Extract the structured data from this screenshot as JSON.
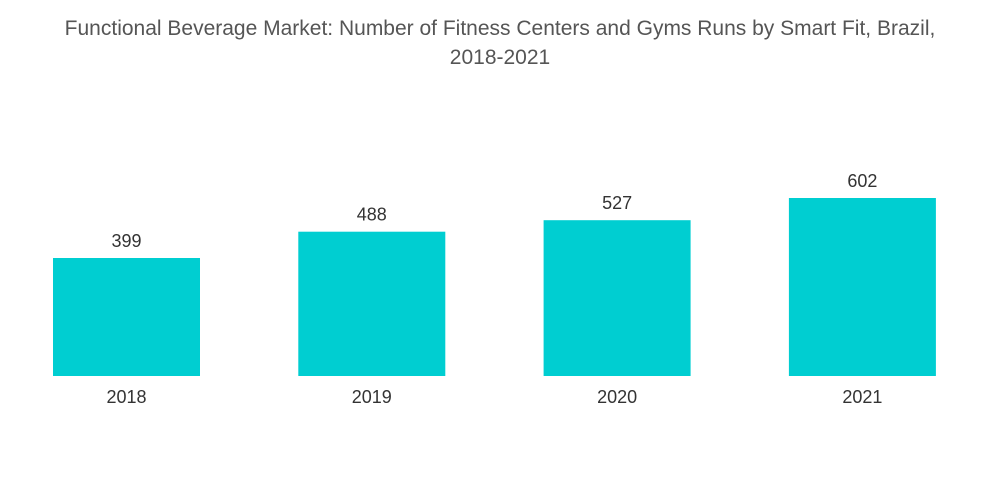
{
  "chart_data": {
    "type": "bar",
    "title_line1": "Functional Beverage Market: Number of Fitness Centers and Gyms Runs by Smart Fit, Brazil,",
    "title_line2": "2018-2021",
    "categories": [
      "2018",
      "2019",
      "2020",
      "2021"
    ],
    "values": [
      399,
      488,
      527,
      602
    ],
    "bar_color": "#00CED1",
    "xlabel": "",
    "ylabel": "",
    "ylim": [
      0,
      602
    ],
    "grid": false,
    "legend": "none"
  }
}
